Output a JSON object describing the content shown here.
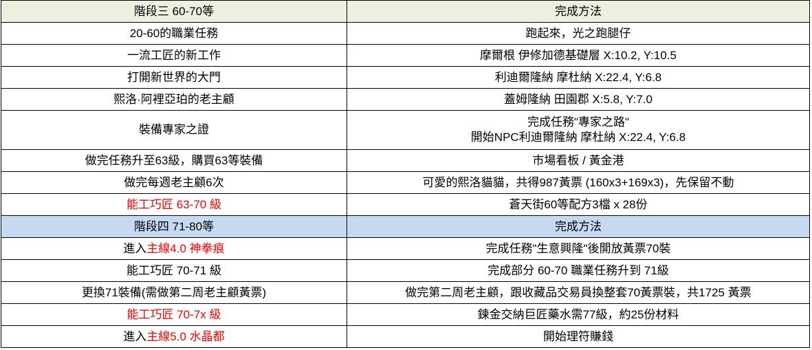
{
  "colors": {
    "stage3_header_bg": "#ebf1de",
    "stage4_header_bg": "#c5d9f1",
    "highlight_text": "#ff0000"
  },
  "stage3": {
    "header": {
      "task": "階段三 60-70等",
      "method": "完成方法"
    },
    "rows": [
      {
        "task": "20-60的職業任務",
        "method": "跑起來，光之跑腿仔"
      },
      {
        "task": "一流工匠的新工作",
        "method": "摩爾根 伊修加德基礎層 X:10.2, Y:10.5"
      },
      {
        "task": "打開新世界的大門",
        "method": "利迪爾隆納 摩杜納 X:22.4, Y:6.8"
      },
      {
        "task": "熙洛·阿裡亞珀的老主顧",
        "method": "蓋姆隆納 田園郡 X:5.8, Y:7.0"
      },
      {
        "task": "裝備專家之證",
        "method_line1": "完成任務\"專家之路\"",
        "method_line2": "開始NPC利迪爾隆納 摩杜納 X:22.4, Y:6.8"
      },
      {
        "task": "做完任務升至63級，購買63等裝備",
        "method": "市場看板 / 黃金港"
      },
      {
        "task": "做完每週老主顧6次",
        "method": "可愛的熙洛貓貓，共得987黃票 (160x3+169x3)，先保留不動"
      },
      {
        "task": "能工巧匠 63-70 級",
        "task_red": true,
        "method": "蒼天街60等配方3檔 x 28份"
      }
    ]
  },
  "stage4": {
    "header": {
      "task": "階段四 71-80等",
      "method": "完成方法"
    },
    "rows": [
      {
        "task_black": "進入",
        "task_red": "主線4.0 神拳痕",
        "method": "完成任務\"生意興隆\"後開放黃票70裝"
      },
      {
        "task": "能工巧匠 70-71 級",
        "method": "完成部分 60-70 職業任務升到 71級"
      },
      {
        "task": "更換71裝備(需做第二周老主顧黃票)",
        "method": "做完第二周老主顧，跟收藏品交易員換整套70黃票裝，共1725 黃票"
      },
      {
        "task": "能工巧匠 70-7x 級",
        "task_red": true,
        "method": "鍊金交納巨匠藥水需77級，約25份材料"
      },
      {
        "task_black": "進入",
        "task_red": "主線5.0 水晶都",
        "method": "開始理符賺錢"
      }
    ]
  }
}
